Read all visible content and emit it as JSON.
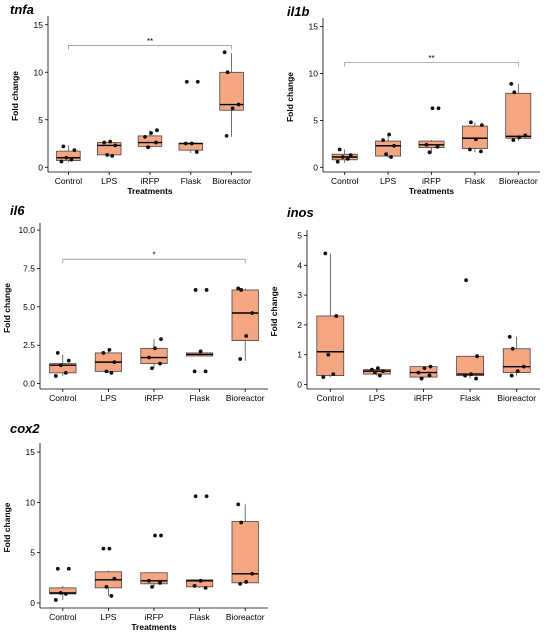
{
  "colors": {
    "box_fill": "#F4A582",
    "box_stroke": "#333333",
    "point": "#111111",
    "bracket": "#888888"
  },
  "chart_data": [
    {
      "type": "box",
      "title": "tnfa",
      "xlabel": "Treatments",
      "ylabel": "Fold change",
      "categories": [
        "Control",
        "LPS",
        "iRFP",
        "Flask",
        "Bioreactor"
      ],
      "ylim": [
        -0.5,
        15.5
      ],
      "yticks": [
        0,
        5,
        10,
        15
      ],
      "yticklabels": [
        "0",
        "5",
        "10",
        "15"
      ],
      "boxes": [
        {
          "whisker_low": 0.5,
          "q1": 0.7,
          "median": 1.0,
          "q3": 1.7,
          "whisker_high": 2.3,
          "points": [
            0.6,
            0.8,
            1.0,
            1.8,
            2.2
          ]
        },
        {
          "whisker_low": 1.2,
          "q1": 1.3,
          "median": 2.3,
          "q3": 2.6,
          "whisker_high": 2.7,
          "points": [
            1.2,
            1.3,
            2.3,
            2.6,
            2.7
          ]
        },
        {
          "whisker_low": 2.0,
          "q1": 2.2,
          "median": 2.6,
          "q3": 3.3,
          "whisker_high": 3.9,
          "points": [
            2.1,
            2.6,
            3.2,
            3.6,
            3.9
          ]
        },
        {
          "whisker_low": 1.5,
          "q1": 1.8,
          "median": 2.5,
          "q3": 2.5,
          "whisker_high": 2.7,
          "points": [
            1.6,
            2.5,
            2.5,
            9.0,
            9.0
          ]
        },
        {
          "whisker_low": 3.2,
          "q1": 6.0,
          "median": 6.6,
          "q3": 10.0,
          "whisker_high": 12.0,
          "points": [
            3.3,
            6.2,
            6.6,
            10.0,
            12.1
          ]
        }
      ],
      "annotations": [
        {
          "from": "Control",
          "to": "Bioreactor",
          "y": 12.8,
          "label": "**"
        }
      ]
    },
    {
      "type": "box",
      "title": "il1b",
      "xlabel": "Treatments",
      "ylabel": "Fold change",
      "categories": [
        "Control",
        "LPS",
        "iRFP",
        "Flask",
        "Bioreactor"
      ],
      "ylim": [
        -0.5,
        15.5
      ],
      "yticks": [
        0,
        5,
        10,
        15
      ],
      "yticklabels": [
        "0",
        "5",
        "10",
        "15"
      ],
      "boxes": [
        {
          "whisker_low": 0.5,
          "q1": 0.8,
          "median": 1.1,
          "q3": 1.4,
          "whisker_high": 1.9,
          "points": [
            0.6,
            0.9,
            1.1,
            1.3,
            1.9
          ]
        },
        {
          "whisker_low": 1.0,
          "q1": 1.2,
          "median": 2.3,
          "q3": 2.8,
          "whisker_high": 3.5,
          "points": [
            1.1,
            1.4,
            2.3,
            2.9,
            3.5
          ]
        },
        {
          "whisker_low": 1.5,
          "q1": 2.1,
          "median": 2.4,
          "q3": 2.8,
          "whisker_high": 2.9,
          "points": [
            1.6,
            2.2,
            2.4,
            6.3,
            6.3
          ]
        },
        {
          "whisker_low": 1.6,
          "q1": 2.0,
          "median": 3.1,
          "q3": 4.4,
          "whisker_high": 4.8,
          "points": [
            1.7,
            1.9,
            3.0,
            4.5,
            4.8
          ]
        },
        {
          "whisker_low": 2.8,
          "q1": 3.1,
          "median": 3.3,
          "q3": 7.9,
          "whisker_high": 8.9,
          "points": [
            2.9,
            3.2,
            3.4,
            8.0,
            8.9
          ]
        }
      ],
      "annotations": [
        {
          "from": "Control",
          "to": "Bioreactor",
          "y": 11.2,
          "label": "**"
        }
      ]
    },
    {
      "type": "box",
      "title": "il6",
      "xlabel": "",
      "ylabel": "Fold change",
      "categories": [
        "Control",
        "LPS",
        "iRFP",
        "Flask",
        "Bioreactor"
      ],
      "ylim": [
        -0.35,
        10.2
      ],
      "yticks": [
        0,
        2.5,
        5,
        7.5,
        10
      ],
      "yticklabels": [
        "0.0",
        "2.5",
        "5.0",
        "7.5",
        "10.0"
      ],
      "boxes": [
        {
          "whisker_low": 0.5,
          "q1": 0.7,
          "median": 1.2,
          "q3": 1.3,
          "whisker_high": 1.9,
          "points": [
            0.5,
            0.7,
            1.2,
            1.5,
            2.0
          ]
        },
        {
          "whisker_low": 0.7,
          "q1": 0.8,
          "median": 1.4,
          "q3": 2.0,
          "whisker_high": 2.2,
          "points": [
            0.7,
            0.8,
            1.4,
            2.0,
            2.2
          ]
        },
        {
          "whisker_low": 1.0,
          "q1": 1.3,
          "median": 1.7,
          "q3": 2.3,
          "whisker_high": 2.9,
          "points": [
            1.0,
            1.3,
            1.7,
            2.3,
            2.9
          ]
        },
        {
          "whisker_low": 1.8,
          "q1": 1.8,
          "median": 1.9,
          "q3": 2.0,
          "whisker_high": 2.1,
          "points": [
            0.8,
            0.8,
            2.1,
            6.1,
            6.1
          ]
        },
        {
          "whisker_low": 1.5,
          "q1": 2.8,
          "median": 4.6,
          "q3": 6.1,
          "whisker_high": 6.2,
          "points": [
            1.6,
            3.1,
            4.6,
            6.1,
            6.2
          ]
        }
      ],
      "annotations": [
        {
          "from": "Control",
          "to": "Bioreactor",
          "y": 8.1,
          "label": "*"
        }
      ]
    },
    {
      "type": "box",
      "title": "inos",
      "xlabel": "",
      "ylabel": "Fold change",
      "categories": [
        "Control",
        "LPS",
        "iRFP",
        "Flask",
        "Bioreactor"
      ],
      "ylim": [
        -0.15,
        5.05
      ],
      "yticks": [
        0,
        1,
        2,
        3,
        4,
        5
      ],
      "yticklabels": [
        "0",
        "1",
        "2",
        "3",
        "4",
        "5"
      ],
      "boxes": [
        {
          "whisker_low": 0.25,
          "q1": 0.3,
          "median": 1.1,
          "q3": 2.3,
          "whisker_high": 4.4,
          "points": [
            0.25,
            0.35,
            1.0,
            2.3,
            4.4
          ]
        },
        {
          "whisker_low": 0.3,
          "q1": 0.35,
          "median": 0.45,
          "q3": 0.5,
          "whisker_high": 0.55,
          "points": [
            0.3,
            0.4,
            0.45,
            0.5,
            0.55
          ]
        },
        {
          "whisker_low": 0.2,
          "q1": 0.25,
          "median": 0.4,
          "q3": 0.6,
          "whisker_high": 0.6,
          "points": [
            0.2,
            0.3,
            0.4,
            0.55,
            0.6
          ]
        },
        {
          "whisker_low": 0.2,
          "q1": 0.3,
          "median": 0.35,
          "q3": 0.95,
          "whisker_high": 0.95,
          "points": [
            0.2,
            0.3,
            0.35,
            0.95,
            3.5
          ]
        },
        {
          "whisker_low": 0.3,
          "q1": 0.4,
          "median": 0.6,
          "q3": 1.2,
          "whisker_high": 1.6,
          "points": [
            0.3,
            0.45,
            0.6,
            1.2,
            1.6
          ]
        }
      ],
      "annotations": []
    },
    {
      "type": "box",
      "title": "cox2",
      "xlabel": "Treatments",
      "ylabel": "Fold change",
      "categories": [
        "Control",
        "LPS",
        "iRFP",
        "Flask",
        "Bioreactor"
      ],
      "ylim": [
        -0.5,
        15.5
      ],
      "yticks": [
        0,
        5,
        10,
        15
      ],
      "yticklabels": [
        "0",
        "5",
        "10",
        "15"
      ],
      "boxes": [
        {
          "whisker_low": 0.3,
          "q1": 0.9,
          "median": 1.0,
          "q3": 1.5,
          "whisker_high": 1.7,
          "points": [
            0.3,
            0.9,
            1.0,
            3.4,
            3.4
          ]
        },
        {
          "whisker_low": 0.7,
          "q1": 1.5,
          "median": 2.3,
          "q3": 3.1,
          "whisker_high": 3.2,
          "points": [
            0.7,
            1.6,
            2.4,
            5.4,
            5.4
          ]
        },
        {
          "whisker_low": 1.6,
          "q1": 1.9,
          "median": 2.2,
          "q3": 3.0,
          "whisker_high": 3.0,
          "points": [
            1.6,
            2.0,
            2.2,
            6.7,
            6.7
          ]
        },
        {
          "whisker_low": 1.5,
          "q1": 1.6,
          "median": 2.2,
          "q3": 2.3,
          "whisker_high": 2.3,
          "points": [
            1.5,
            1.7,
            2.2,
            10.6,
            10.6
          ]
        },
        {
          "whisker_low": 1.9,
          "q1": 2.0,
          "median": 2.9,
          "q3": 8.1,
          "whisker_high": 9.8,
          "points": [
            1.9,
            2.1,
            2.9,
            8.0,
            9.8
          ]
        }
      ],
      "annotations": []
    }
  ]
}
